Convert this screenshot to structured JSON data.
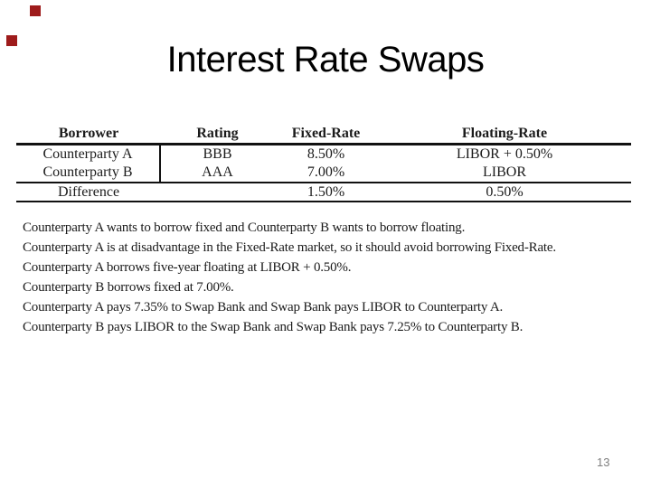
{
  "slide": {
    "title": "Interest Rate Swaps",
    "page_number": "13",
    "accent_color": "#9e1b1b"
  },
  "table": {
    "columns": [
      "Borrower",
      "Rating",
      "Fixed-Rate",
      "Floating-Rate"
    ],
    "rows": [
      {
        "cells": [
          "Counterparty A",
          "BBB",
          "8.50%",
          "LIBOR + 0.50%"
        ]
      },
      {
        "cells": [
          "Counterparty B",
          "AAA",
          "7.00%",
          "LIBOR"
        ]
      },
      {
        "cells": [
          "Difference",
          "",
          "1.50%",
          "0.50%"
        ]
      }
    ]
  },
  "notes": [
    "Counterparty A wants to borrow fixed and Counterparty B wants to borrow floating.",
    "Counterparty A is at disadvantage in the Fixed-Rate market, so it should avoid borrowing Fixed-Rate.",
    "Counterparty A borrows five-year floating at LIBOR + 0.50%.",
    "Counterparty B borrows fixed at 7.00%.",
    "Counterparty A pays 7.35% to Swap Bank and Swap Bank pays LIBOR to Counterparty A.",
    "Counterparty B pays LIBOR to the Swap Bank and Swap Bank pays 7.25% to Counterparty B."
  ]
}
